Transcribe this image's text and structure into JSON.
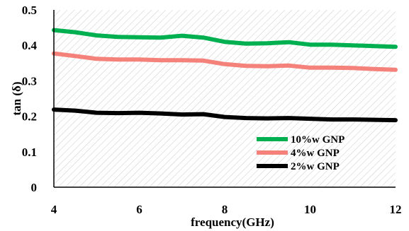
{
  "chart_data": {
    "type": "line",
    "xlabel": "frequency(GHz)",
    "ylabel": "tan (δ)",
    "xlim": [
      4,
      12
    ],
    "ylim": [
      0,
      0.5
    ],
    "x_ticks": [
      "4",
      "6",
      "8",
      "10",
      "12"
    ],
    "y_ticks": [
      "0",
      "0.1",
      "0.2",
      "0.3",
      "0.4",
      "0.5"
    ],
    "grid": false,
    "legend_position": "bottom-right",
    "series": [
      {
        "name": "10%w GNP",
        "color": "#00b050",
        "x": [
          4,
          4.5,
          5,
          5.5,
          6,
          6.5,
          7,
          7.5,
          8,
          8.5,
          9,
          9.5,
          10,
          10.5,
          11,
          11.5,
          12
        ],
        "y": [
          0.443,
          0.437,
          0.428,
          0.424,
          0.423,
          0.422,
          0.427,
          0.422,
          0.41,
          0.405,
          0.406,
          0.409,
          0.402,
          0.402,
          0.4,
          0.398,
          0.396
        ]
      },
      {
        "name": "4%w GNP",
        "color": "#f4817a",
        "x": [
          4,
          4.5,
          5,
          5.5,
          6,
          6.5,
          7,
          7.5,
          8,
          8.5,
          9,
          9.5,
          10,
          10.5,
          11,
          11.5,
          12
        ],
        "y": [
          0.377,
          0.37,
          0.362,
          0.36,
          0.36,
          0.358,
          0.358,
          0.357,
          0.347,
          0.342,
          0.341,
          0.343,
          0.337,
          0.337,
          0.336,
          0.333,
          0.331
        ]
      },
      {
        "name": "2%w GNP",
        "color": "#000000",
        "x": [
          4,
          4.5,
          5,
          5.5,
          6,
          6.5,
          7,
          7.5,
          8,
          8.5,
          9,
          9.5,
          10,
          10.5,
          11,
          11.5,
          12
        ],
        "y": [
          0.219,
          0.216,
          0.21,
          0.209,
          0.21,
          0.208,
          0.205,
          0.206,
          0.198,
          0.195,
          0.194,
          0.195,
          0.193,
          0.191,
          0.191,
          0.19,
          0.189
        ]
      }
    ]
  }
}
